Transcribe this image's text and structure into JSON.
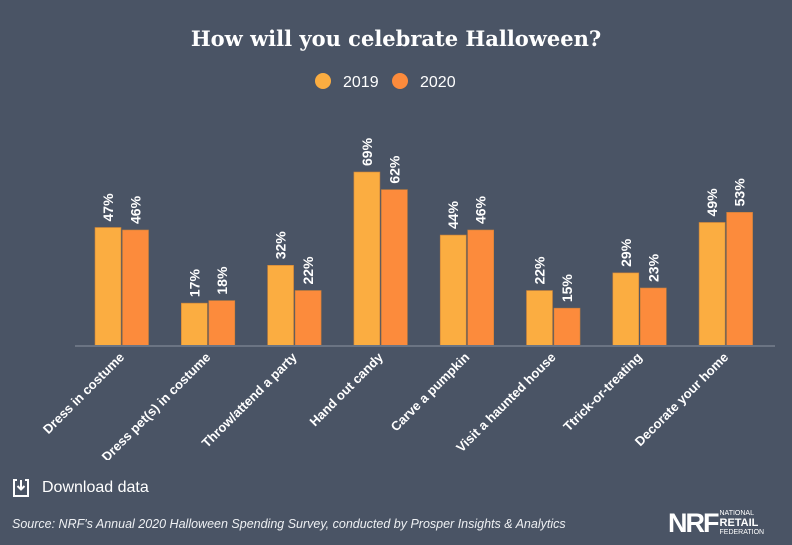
{
  "chart_data": {
    "type": "bar",
    "title": "How will you celebrate Halloween?",
    "categories": [
      "Dress in costume",
      "Dress pet(s) in costume",
      "Throw/attend a party",
      "Hand out candy",
      "Carve a pumpkin",
      "Visit a haunted house",
      "Ttrick-or-treating",
      "Decorate your home"
    ],
    "series": [
      {
        "name": "2019",
        "color": "#fbad41",
        "values": [
          47,
          17,
          32,
          69,
          44,
          22,
          29,
          49
        ]
      },
      {
        "name": "2020",
        "color": "#fc8b3c",
        "values": [
          46,
          18,
          22,
          62,
          46,
          15,
          23,
          53
        ]
      }
    ],
    "value_suffix": "%",
    "ylim": [
      0,
      75
    ],
    "legend_position": "top-center",
    "grid": false
  },
  "footer": {
    "download_label": "Download data",
    "source": "Source: NRF's Annual 2020 Halloween Spending Survey, conducted by Prosper Insights & Analytics",
    "logo": {
      "mark": "NRF",
      "line1": "NATIONAL",
      "line2": "RETAIL",
      "line3": "FEDERATION"
    }
  },
  "colors": {
    "background": "#4a5465",
    "axis": "#6b7483"
  }
}
